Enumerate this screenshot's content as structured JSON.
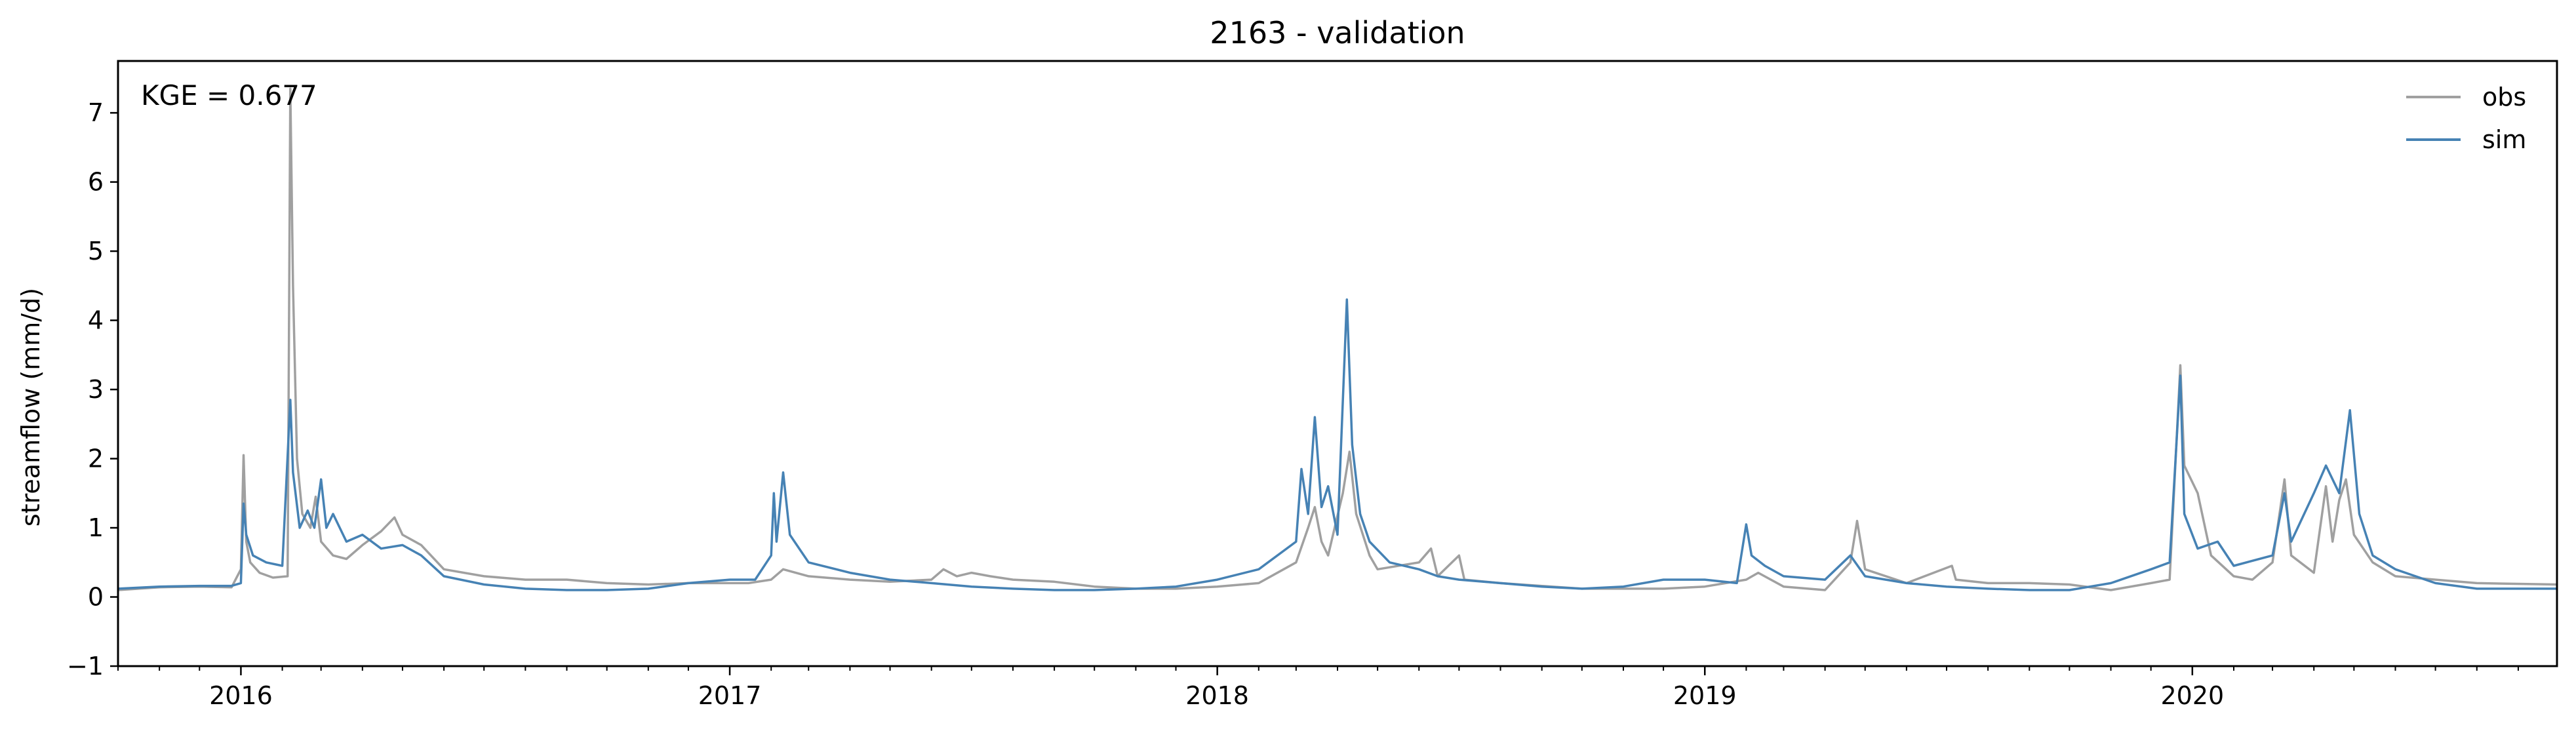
{
  "chart_data": {
    "type": "line",
    "title": "2163 - validation",
    "xlabel": "",
    "ylabel": "streamflow (mm/d)",
    "annotation": "KGE = 0.677",
    "xlim": [
      "2015-10-01",
      "2020-09-30"
    ],
    "ylim": [
      -1,
      7.75
    ],
    "yticks": [
      -1,
      0,
      1,
      2,
      3,
      4,
      5,
      6,
      7
    ],
    "xticks": [
      {
        "date": "2016-01-01",
        "label": "2016"
      },
      {
        "date": "2017-01-01",
        "label": "2017"
      },
      {
        "date": "2018-01-01",
        "label": "2018"
      },
      {
        "date": "2019-01-01",
        "label": "2019"
      },
      {
        "date": "2020-01-01",
        "label": "2020"
      }
    ],
    "grid": false,
    "legend_position": "top-right",
    "series": [
      {
        "name": "obs",
        "color": "#a0a0a0",
        "points": [
          [
            "2015-10-01",
            0.1
          ],
          [
            "2015-11-01",
            0.14
          ],
          [
            "2015-12-01",
            0.15
          ],
          [
            "2015-12-25",
            0.14
          ],
          [
            "2016-01-01",
            0.4
          ],
          [
            "2016-01-03",
            2.05
          ],
          [
            "2016-01-05",
            0.8
          ],
          [
            "2016-01-08",
            0.5
          ],
          [
            "2016-01-15",
            0.35
          ],
          [
            "2016-01-25",
            0.28
          ],
          [
            "2016-02-05",
            0.3
          ],
          [
            "2016-02-07",
            7.35
          ],
          [
            "2016-02-09",
            4.5
          ],
          [
            "2016-02-12",
            2.0
          ],
          [
            "2016-02-16",
            1.2
          ],
          [
            "2016-02-22",
            1.0
          ],
          [
            "2016-02-26",
            1.45
          ],
          [
            "2016-03-01",
            0.8
          ],
          [
            "2016-03-10",
            0.6
          ],
          [
            "2016-03-20",
            0.55
          ],
          [
            "2016-04-01",
            0.75
          ],
          [
            "2016-04-15",
            0.95
          ],
          [
            "2016-04-25",
            1.15
          ],
          [
            "2016-05-01",
            0.9
          ],
          [
            "2016-05-15",
            0.75
          ],
          [
            "2016-06-01",
            0.4
          ],
          [
            "2016-07-01",
            0.3
          ],
          [
            "2016-08-01",
            0.25
          ],
          [
            "2016-09-01",
            0.25
          ],
          [
            "2016-10-01",
            0.2
          ],
          [
            "2016-11-01",
            0.18
          ],
          [
            "2016-12-01",
            0.2
          ],
          [
            "2017-01-15",
            0.2
          ],
          [
            "2017-02-01",
            0.25
          ],
          [
            "2017-02-10",
            0.4
          ],
          [
            "2017-03-01",
            0.3
          ],
          [
            "2017-04-01",
            0.25
          ],
          [
            "2017-05-01",
            0.22
          ],
          [
            "2017-06-01",
            0.25
          ],
          [
            "2017-06-10",
            0.4
          ],
          [
            "2017-06-20",
            0.3
          ],
          [
            "2017-07-01",
            0.35
          ],
          [
            "2017-07-15",
            0.3
          ],
          [
            "2017-08-01",
            0.25
          ],
          [
            "2017-09-01",
            0.22
          ],
          [
            "2017-10-01",
            0.15
          ],
          [
            "2017-11-01",
            0.12
          ],
          [
            "2017-12-01",
            0.12
          ],
          [
            "2018-01-01",
            0.15
          ],
          [
            "2018-02-01",
            0.2
          ],
          [
            "2018-03-01",
            0.5
          ],
          [
            "2018-03-10",
            1.0
          ],
          [
            "2018-03-15",
            1.3
          ],
          [
            "2018-03-20",
            0.8
          ],
          [
            "2018-03-25",
            0.6
          ],
          [
            "2018-04-05",
            1.5
          ],
          [
            "2018-04-10",
            2.1
          ],
          [
            "2018-04-15",
            1.2
          ],
          [
            "2018-04-25",
            0.6
          ],
          [
            "2018-05-01",
            0.4
          ],
          [
            "2018-06-01",
            0.5
          ],
          [
            "2018-06-10",
            0.7
          ],
          [
            "2018-06-15",
            0.3
          ],
          [
            "2018-07-01",
            0.6
          ],
          [
            "2018-07-05",
            0.25
          ],
          [
            "2018-08-01",
            0.2
          ],
          [
            "2018-10-01",
            0.12
          ],
          [
            "2018-12-01",
            0.12
          ],
          [
            "2019-01-01",
            0.15
          ],
          [
            "2019-02-01",
            0.25
          ],
          [
            "2019-02-10",
            0.35
          ],
          [
            "2019-03-01",
            0.15
          ],
          [
            "2019-04-01",
            0.1
          ],
          [
            "2019-04-20",
            0.5
          ],
          [
            "2019-04-25",
            1.1
          ],
          [
            "2019-05-01",
            0.4
          ],
          [
            "2019-06-01",
            0.2
          ],
          [
            "2019-07-05",
            0.45
          ],
          [
            "2019-07-08",
            0.25
          ],
          [
            "2019-08-01",
            0.2
          ],
          [
            "2019-09-01",
            0.2
          ],
          [
            "2019-10-01",
            0.18
          ],
          [
            "2019-11-01",
            0.1
          ],
          [
            "2019-12-01",
            0.2
          ],
          [
            "2019-12-15",
            0.25
          ],
          [
            "2019-12-23",
            3.35
          ],
          [
            "2019-12-26",
            1.9
          ],
          [
            "2020-01-05",
            1.5
          ],
          [
            "2020-01-15",
            0.6
          ],
          [
            "2020-02-01",
            0.3
          ],
          [
            "2020-02-15",
            0.25
          ],
          [
            "2020-03-01",
            0.5
          ],
          [
            "2020-03-10",
            1.7
          ],
          [
            "2020-03-15",
            0.6
          ],
          [
            "2020-04-01",
            0.35
          ],
          [
            "2020-04-10",
            1.6
          ],
          [
            "2020-04-15",
            0.8
          ],
          [
            "2020-04-20",
            1.4
          ],
          [
            "2020-04-25",
            1.7
          ],
          [
            "2020-05-01",
            0.9
          ],
          [
            "2020-05-15",
            0.5
          ],
          [
            "2020-06-01",
            0.3
          ],
          [
            "2020-07-01",
            0.25
          ],
          [
            "2020-08-01",
            0.2
          ],
          [
            "2020-09-30",
            0.18
          ]
        ]
      },
      {
        "name": "sim",
        "color": "#4682b4",
        "points": [
          [
            "2015-10-01",
            0.12
          ],
          [
            "2015-11-01",
            0.15
          ],
          [
            "2015-12-01",
            0.16
          ],
          [
            "2015-12-25",
            0.16
          ],
          [
            "2016-01-01",
            0.2
          ],
          [
            "2016-01-03",
            1.35
          ],
          [
            "2016-01-05",
            0.9
          ],
          [
            "2016-01-10",
            0.6
          ],
          [
            "2016-01-20",
            0.5
          ],
          [
            "2016-02-01",
            0.45
          ],
          [
            "2016-02-07",
            2.85
          ],
          [
            "2016-02-09",
            1.8
          ],
          [
            "2016-02-14",
            1.0
          ],
          [
            "2016-02-20",
            1.25
          ],
          [
            "2016-02-25",
            1.0
          ],
          [
            "2016-03-01",
            1.7
          ],
          [
            "2016-03-05",
            1.0
          ],
          [
            "2016-03-10",
            1.2
          ],
          [
            "2016-03-20",
            0.8
          ],
          [
            "2016-04-01",
            0.9
          ],
          [
            "2016-04-15",
            0.7
          ],
          [
            "2016-05-01",
            0.75
          ],
          [
            "2016-05-15",
            0.6
          ],
          [
            "2016-06-01",
            0.3
          ],
          [
            "2016-07-01",
            0.18
          ],
          [
            "2016-08-01",
            0.12
          ],
          [
            "2016-09-01",
            0.1
          ],
          [
            "2016-10-01",
            0.1
          ],
          [
            "2016-11-01",
            0.12
          ],
          [
            "2016-12-01",
            0.2
          ],
          [
            "2017-01-01",
            0.25
          ],
          [
            "2017-01-20",
            0.25
          ],
          [
            "2017-02-01",
            0.6
          ],
          [
            "2017-02-03",
            1.5
          ],
          [
            "2017-02-05",
            0.8
          ],
          [
            "2017-02-10",
            1.8
          ],
          [
            "2017-02-15",
            0.9
          ],
          [
            "2017-03-01",
            0.5
          ],
          [
            "2017-04-01",
            0.35
          ],
          [
            "2017-05-01",
            0.25
          ],
          [
            "2017-06-01",
            0.2
          ],
          [
            "2017-07-01",
            0.15
          ],
          [
            "2017-08-01",
            0.12
          ],
          [
            "2017-09-01",
            0.1
          ],
          [
            "2017-10-01",
            0.1
          ],
          [
            "2017-11-01",
            0.12
          ],
          [
            "2017-12-01",
            0.15
          ],
          [
            "2018-01-01",
            0.25
          ],
          [
            "2018-02-01",
            0.4
          ],
          [
            "2018-03-01",
            0.8
          ],
          [
            "2018-03-05",
            1.85
          ],
          [
            "2018-03-10",
            1.2
          ],
          [
            "2018-03-15",
            2.6
          ],
          [
            "2018-03-20",
            1.3
          ],
          [
            "2018-03-25",
            1.6
          ],
          [
            "2018-04-01",
            0.9
          ],
          [
            "2018-04-08",
            4.3
          ],
          [
            "2018-04-12",
            2.2
          ],
          [
            "2018-04-18",
            1.2
          ],
          [
            "2018-04-25",
            0.8
          ],
          [
            "2018-05-10",
            0.5
          ],
          [
            "2018-06-01",
            0.4
          ],
          [
            "2018-06-15",
            0.3
          ],
          [
            "2018-07-01",
            0.25
          ],
          [
            "2018-08-01",
            0.2
          ],
          [
            "2018-09-01",
            0.15
          ],
          [
            "2018-10-01",
            0.12
          ],
          [
            "2018-11-01",
            0.15
          ],
          [
            "2018-12-01",
            0.25
          ],
          [
            "2019-01-01",
            0.25
          ],
          [
            "2019-01-25",
            0.2
          ],
          [
            "2019-02-01",
            1.05
          ],
          [
            "2019-02-05",
            0.6
          ],
          [
            "2019-02-15",
            0.45
          ],
          [
            "2019-03-01",
            0.3
          ],
          [
            "2019-04-01",
            0.25
          ],
          [
            "2019-04-20",
            0.6
          ],
          [
            "2019-05-01",
            0.3
          ],
          [
            "2019-06-01",
            0.2
          ],
          [
            "2019-07-01",
            0.15
          ],
          [
            "2019-08-01",
            0.12
          ],
          [
            "2019-09-01",
            0.1
          ],
          [
            "2019-10-01",
            0.1
          ],
          [
            "2019-11-01",
            0.2
          ],
          [
            "2019-12-01",
            0.4
          ],
          [
            "2019-12-15",
            0.5
          ],
          [
            "2019-12-23",
            3.2
          ],
          [
            "2019-12-26",
            1.2
          ],
          [
            "2020-01-05",
            0.7
          ],
          [
            "2020-01-20",
            0.8
          ],
          [
            "2020-02-01",
            0.45
          ],
          [
            "2020-03-01",
            0.6
          ],
          [
            "2020-03-10",
            1.5
          ],
          [
            "2020-03-15",
            0.8
          ],
          [
            "2020-04-01",
            1.5
          ],
          [
            "2020-04-10",
            1.9
          ],
          [
            "2020-04-20",
            1.5
          ],
          [
            "2020-04-28",
            2.7
          ],
          [
            "2020-05-05",
            1.2
          ],
          [
            "2020-05-15",
            0.6
          ],
          [
            "2020-06-01",
            0.4
          ],
          [
            "2020-07-01",
            0.2
          ],
          [
            "2020-08-01",
            0.12
          ],
          [
            "2020-09-30",
            0.12
          ]
        ]
      }
    ]
  }
}
